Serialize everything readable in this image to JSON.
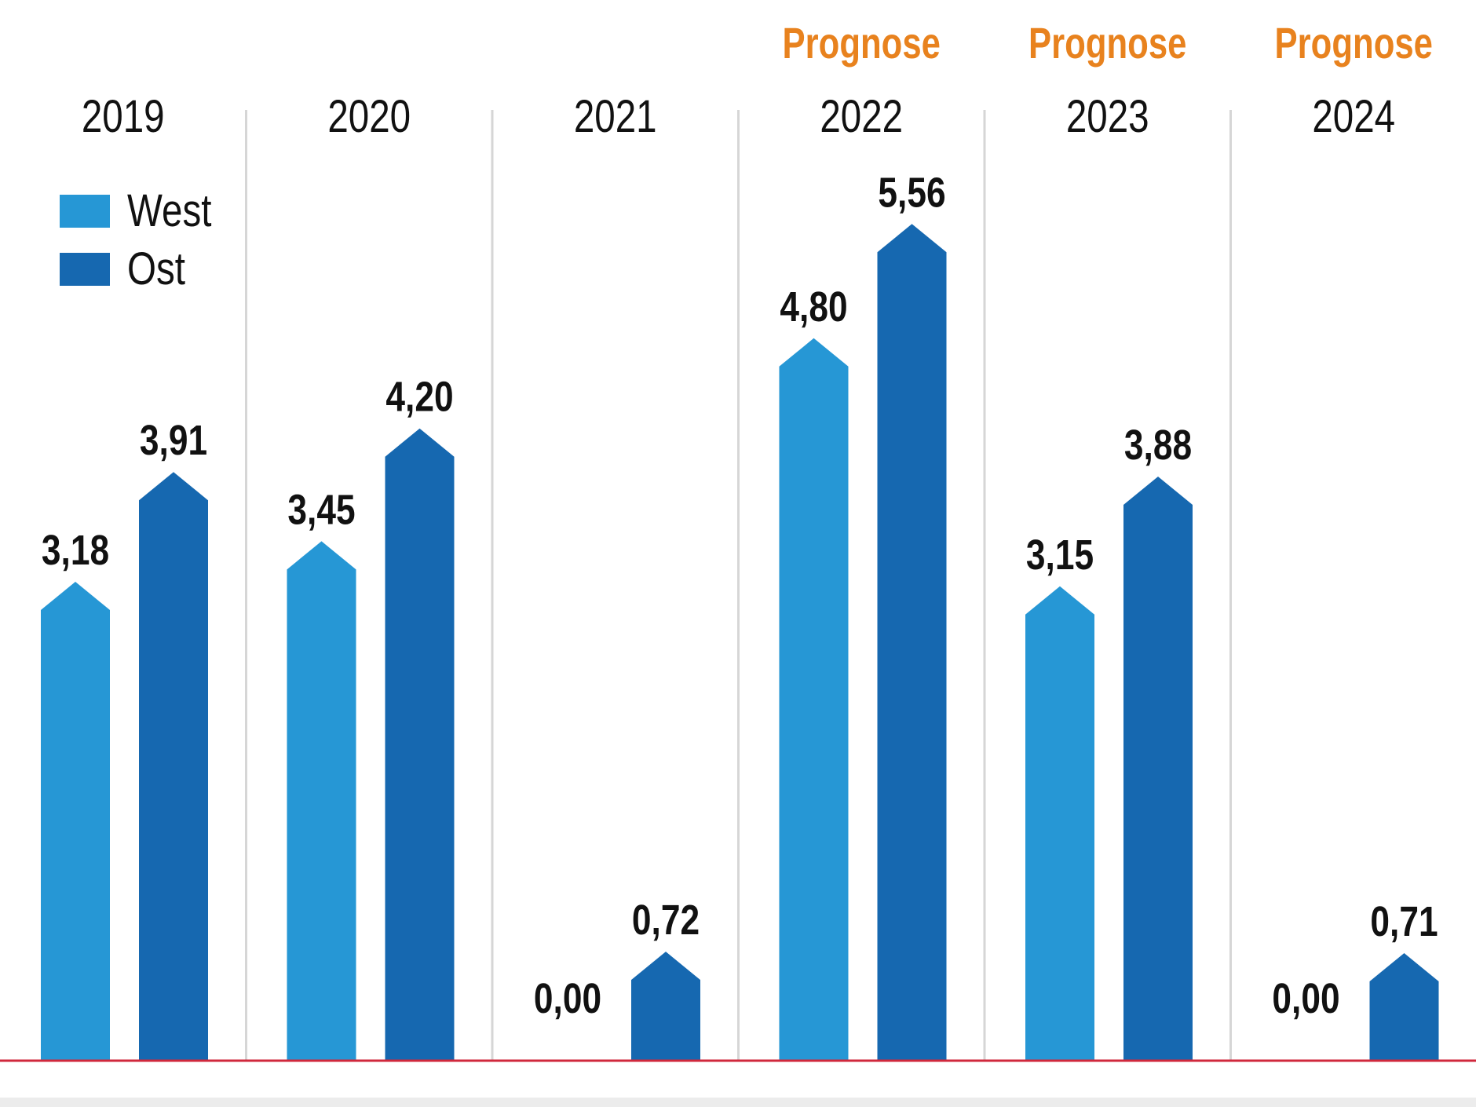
{
  "chart_data": {
    "type": "bar",
    "title": "",
    "xlabel": "",
    "ylabel": "",
    "categories": [
      "2019",
      "2020",
      "2021",
      "2022",
      "2023",
      "2024"
    ],
    "forecast_label": "Prognose",
    "forecast_categories": [
      "2022",
      "2023",
      "2024"
    ],
    "series": [
      {
        "name": "West",
        "color": "#2697d5",
        "values": [
          3.18,
          3.45,
          0.0,
          4.8,
          3.15,
          0.0
        ],
        "labels": [
          "3,18",
          "3,45",
          "0,00",
          "4,80",
          "3,15",
          "0,00"
        ]
      },
      {
        "name": "Ost",
        "color": "#1668b0",
        "values": [
          3.91,
          4.2,
          0.72,
          5.56,
          3.88,
          0.71
        ],
        "labels": [
          "3,91",
          "4,20",
          "0,72",
          "5,56",
          "3,88",
          "0,71"
        ]
      }
    ],
    "ylim": [
      0,
      6.5
    ],
    "grid": false,
    "legend": "top-left",
    "baseline_color": "#d0283c",
    "forecast_color": "#e8821e",
    "separator_color": "#d6d6d6"
  }
}
